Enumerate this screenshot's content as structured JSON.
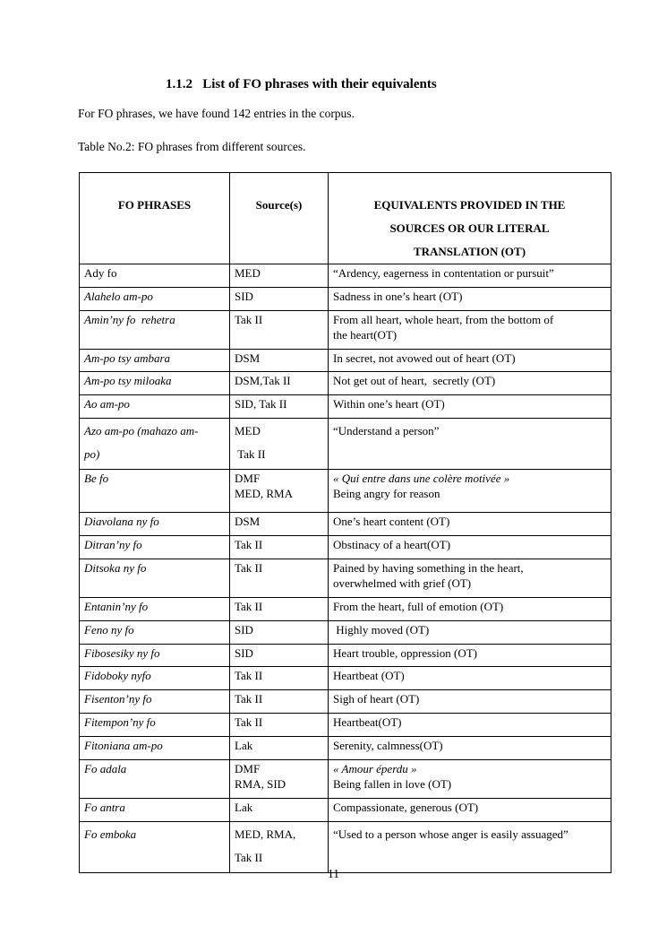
{
  "document": {
    "heading": "1.1.2   List of FO phrases with their equivalents",
    "intro": "For FO phrases, we have found 142 entries in the corpus.",
    "table_caption": "Table No.2: FO phrases from different sources.",
    "page_number": "11"
  },
  "table": {
    "headers": {
      "col1": "FO PHRASES",
      "col2": "Source(s)",
      "col3_lines": [
        "EQUIVALENTS PROVIDED IN THE",
        "SOURCES OR OUR LITERAL",
        "TRANSLATION (OT)"
      ]
    },
    "rows": [
      {
        "variant": "",
        "phrase": {
          "lines": [
            "Ady fo"
          ],
          "italic": false
        },
        "sources": [
          "MED"
        ],
        "equivalents": [
          {
            "t": "“Ardency, eagerness in contentation or pursuit”",
            "i": false
          }
        ]
      },
      {
        "variant": "",
        "phrase": {
          "lines": [
            "Alahelo am-po"
          ],
          "italic": true
        },
        "sources": [
          "SID"
        ],
        "equivalents": [
          {
            "t": "Sadness in one’s heart (OT)",
            "i": false
          }
        ]
      },
      {
        "variant": "",
        "phrase": {
          "lines": [
            "Amin’ny fo  rehetra"
          ],
          "italic": true
        },
        "sources": [
          "Tak II"
        ],
        "equivalents": [
          {
            "t": "From all heart, whole heart, from the bottom of",
            "i": false
          },
          {
            "t": "the heart(OT)",
            "i": false
          }
        ]
      },
      {
        "variant": "",
        "phrase": {
          "lines": [
            "Am-po tsy ambara"
          ],
          "italic": true
        },
        "sources": [
          "DSM"
        ],
        "equivalents": [
          {
            "t": "In secret, not avowed out of heart (OT)",
            "i": false
          }
        ]
      },
      {
        "variant": "",
        "phrase": {
          "lines": [
            "Am-po tsy miloaka"
          ],
          "italic": true
        },
        "sources": [
          "DSM,Tak II"
        ],
        "equivalents": [
          {
            "t": "Not get out of heart,  secretly (OT)",
            "i": false
          }
        ]
      },
      {
        "variant": "",
        "phrase": {
          "lines": [
            "Ao am-po"
          ],
          "italic": true
        },
        "sources": [
          "SID, Tak II"
        ],
        "equivalents": [
          {
            "t": "Within one’s heart (OT)",
            "i": false
          }
        ]
      },
      {
        "variant": "double",
        "phrase": {
          "lines": [
            "Azo am-po (mahazo am-",
            "po)"
          ],
          "italic": true
        },
        "sources": [
          "MED",
          " Tak II"
        ],
        "equivalents": [
          {
            "t": "“Understand a person”",
            "i": false
          }
        ]
      },
      {
        "variant": "tall",
        "phrase": {
          "lines": [
            "Be fo"
          ],
          "italic": true
        },
        "sources": [
          "DMF",
          "MED, RMA"
        ],
        "equivalents": [
          {
            "t": "« Qui entre dans une colère motivée »",
            "i": true
          },
          {
            "t": "Being angry for reason",
            "i": false
          }
        ]
      },
      {
        "variant": "",
        "phrase": {
          "lines": [
            "Diavolana ny fo"
          ],
          "italic": true
        },
        "sources": [
          "DSM"
        ],
        "equivalents": [
          {
            "t": "One’s heart content (OT)",
            "i": false
          }
        ]
      },
      {
        "variant": "",
        "phrase": {
          "lines": [
            "Ditran’ny fo"
          ],
          "italic": true
        },
        "sources": [
          "Tak II"
        ],
        "equivalents": [
          {
            "t": "Obstinacy of a heart(OT)",
            "i": false
          }
        ]
      },
      {
        "variant": "",
        "phrase": {
          "lines": [
            "Ditsoka ny fo"
          ],
          "italic": true
        },
        "sources": [
          "Tak II"
        ],
        "equivalents": [
          {
            "t": "Pained by having something in the heart,",
            "i": false
          },
          {
            "t": "overwhelmed with grief (OT)",
            "i": false
          }
        ]
      },
      {
        "variant": "",
        "phrase": {
          "lines": [
            "Entanin’ny fo"
          ],
          "italic": true
        },
        "sources": [
          "Tak II"
        ],
        "equivalents": [
          {
            "t": "From the heart, full of emotion (OT)",
            "i": false
          }
        ]
      },
      {
        "variant": "",
        "phrase": {
          "lines": [
            "Feno ny fo"
          ],
          "italic": true
        },
        "sources": [
          "SID"
        ],
        "equivalents": [
          {
            "t": " Highly moved (OT)",
            "i": false
          }
        ]
      },
      {
        "variant": "",
        "phrase": {
          "lines": [
            "Fibosesiky ny fo"
          ],
          "italic": true
        },
        "sources": [
          "SID"
        ],
        "equivalents": [
          {
            "t": "Heart trouble, oppression (OT)",
            "i": false
          }
        ]
      },
      {
        "variant": "",
        "phrase": {
          "lines": [
            "Fidoboky nyfo"
          ],
          "italic": true
        },
        "sources": [
          "Tak II"
        ],
        "equivalents": [
          {
            "t": "Heartbeat (OT)",
            "i": false
          }
        ]
      },
      {
        "variant": "",
        "phrase": {
          "lines": [
            "Fisenton’ny fo"
          ],
          "italic": true
        },
        "sources": [
          "Tak II"
        ],
        "equivalents": [
          {
            "t": "Sigh of heart (OT)",
            "i": false
          }
        ]
      },
      {
        "variant": "",
        "phrase": {
          "lines": [
            "Fitempon’ny fo"
          ],
          "italic": true
        },
        "sources": [
          "Tak II"
        ],
        "equivalents": [
          {
            "t": "Heartbeat(OT)",
            "i": false
          }
        ]
      },
      {
        "variant": "",
        "phrase": {
          "lines": [
            "Fitoniana am-po"
          ],
          "italic": true
        },
        "sources": [
          "Lak"
        ],
        "equivalents": [
          {
            "t": "Serenity, calmness(OT)",
            "i": false
          }
        ]
      },
      {
        "variant": "",
        "phrase": {
          "lines": [
            "Fo adala"
          ],
          "italic": true
        },
        "sources": [
          "DMF",
          "RMA, SID"
        ],
        "equivalents": [
          {
            "t": "« Amour éperdu »",
            "i": true
          },
          {
            "t": "Being fallen in love (OT)",
            "i": false
          }
        ]
      },
      {
        "variant": "",
        "phrase": {
          "lines": [
            "Fo antra"
          ],
          "italic": true
        },
        "sources": [
          "Lak"
        ],
        "equivalents": [
          {
            "t": "Compassionate, generous (OT)",
            "i": false
          }
        ]
      },
      {
        "variant": "double",
        "phrase": {
          "lines": [
            "Fo emboka"
          ],
          "italic": true
        },
        "sources": [
          "MED, RMA,",
          "Tak II"
        ],
        "equivalents": [
          {
            "t": "“Used to a person whose anger is easily assuaged”",
            "i": false
          }
        ]
      }
    ]
  }
}
